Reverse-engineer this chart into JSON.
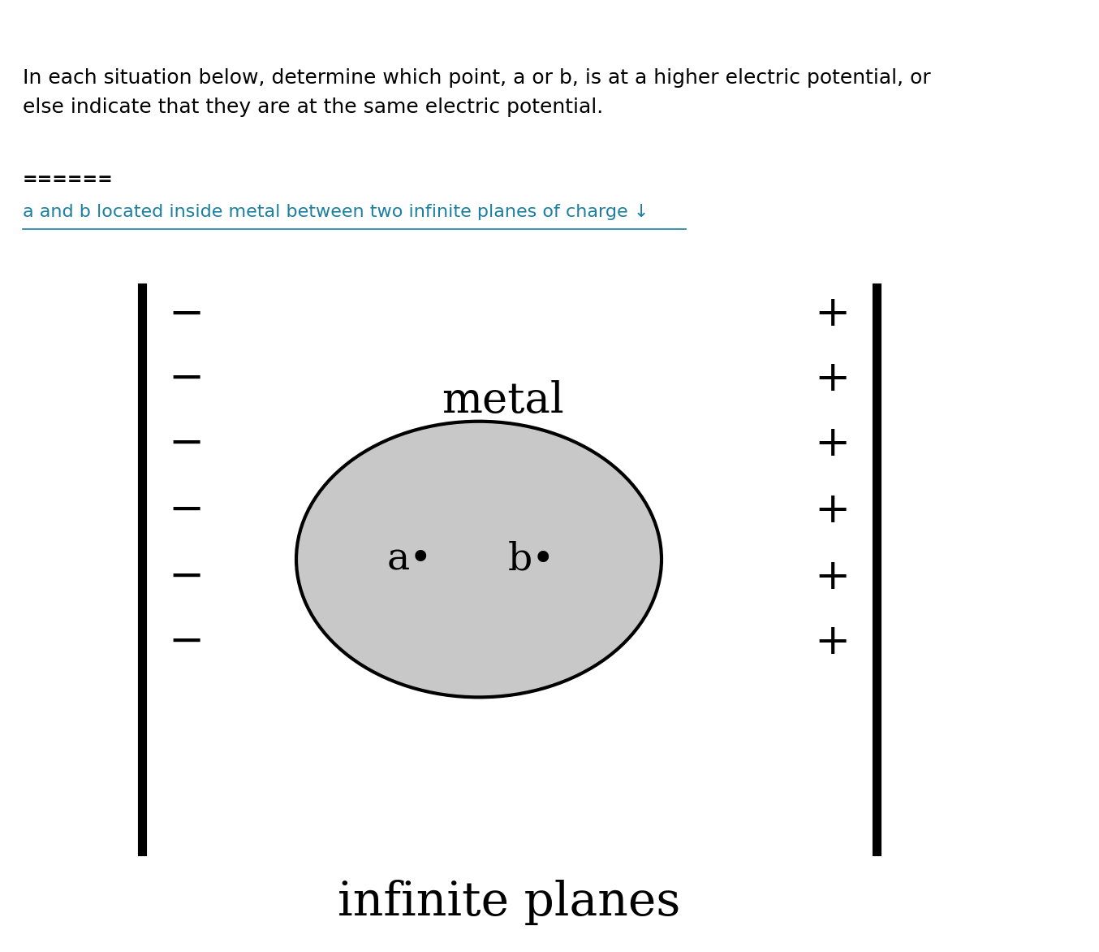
{
  "title_text": "In each situation below, determine which point, a or b, is at a higher electric potential, or\nelse indicate that they are at the same electric potential.",
  "equals_text": "======",
  "link_text": "a and b located inside metal between two infinite planes of charge ↓",
  "metal_label": "metal",
  "infinite_planes_label": "infinite planes",
  "point_a_label": "a•",
  "point_b_label": "b•",
  "bg_color": "#ffffff",
  "top_bar_color": "#c0514d",
  "text_color": "#000000",
  "link_color": "#1a7fa0",
  "plane_color": "#000000",
  "ellipse_fill": "#c8c8c8",
  "ellipse_edge": "#000000",
  "fig_width": 13.54,
  "fig_height": 11.72,
  "title_fontsize": 18,
  "link_fontsize": 16,
  "equals_fontsize": 16,
  "metal_fontsize": 38,
  "planes_fontsize": 42,
  "point_fontsize": 34,
  "charge_fontsize": 38,
  "plane_linewidth": 8
}
